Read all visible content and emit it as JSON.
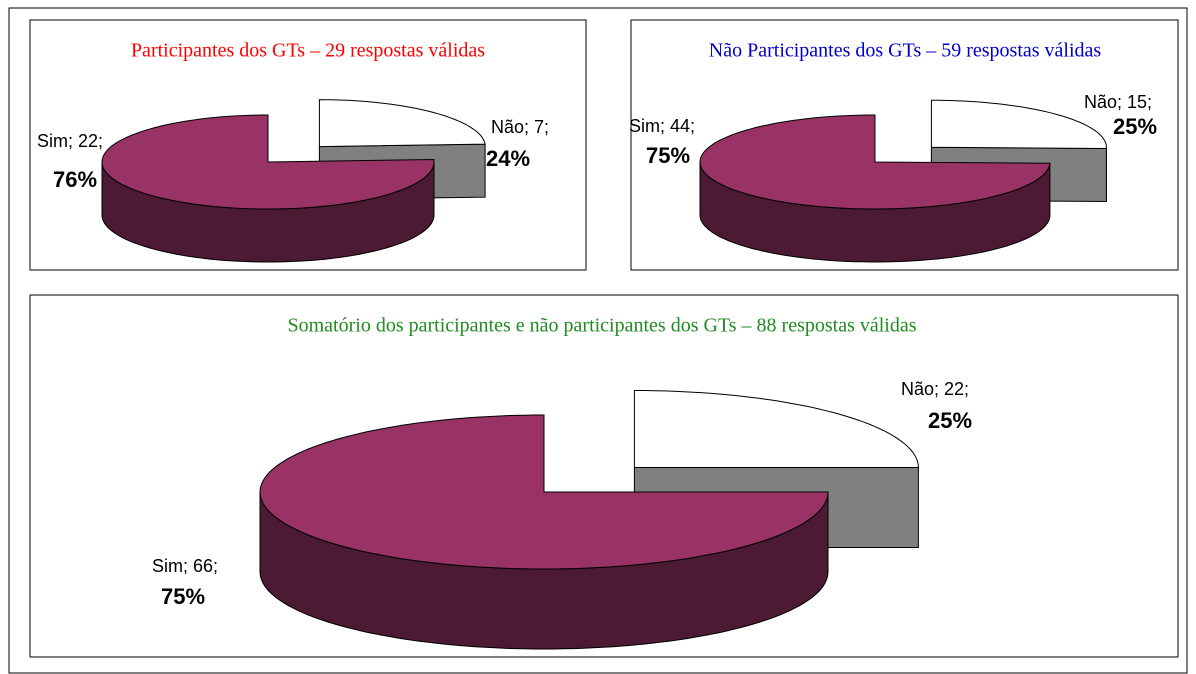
{
  "chart_data": [
    {
      "type": "pie",
      "title": "Participantes dos GTs – 29 respostas válidas",
      "title_color": "#ff0000",
      "categories": [
        "Sim",
        "Não"
      ],
      "values": [
        22,
        7
      ],
      "value_labels": [
        "Sim; 22;",
        "Não; 7;"
      ],
      "percentages": [
        76,
        24
      ],
      "percentage_labels": [
        "76%",
        "24%"
      ],
      "colors": [
        "#993366",
        "#ffffff"
      ],
      "side_colors": [
        "#4d1a33",
        "#808080"
      ]
    },
    {
      "type": "pie",
      "title": "Não Participantes dos GTs – 59 respostas válidas",
      "title_color": "#0000cc",
      "categories": [
        "Sim",
        "Não"
      ],
      "values": [
        44,
        15
      ],
      "value_labels": [
        "Sim; 44;",
        "Não; 15;"
      ],
      "percentages": [
        75,
        25
      ],
      "percentage_labels": [
        "75%",
        "25%"
      ],
      "colors": [
        "#993366",
        "#ffffff"
      ],
      "side_colors": [
        "#4d1a33",
        "#808080"
      ]
    },
    {
      "type": "pie",
      "title": "Somatório dos participantes e não participantes dos GTs – 88 respostas válidas",
      "title_color": "#228b22",
      "categories": [
        "Sim",
        "Não"
      ],
      "values": [
        66,
        22
      ],
      "value_labels": [
        "Sim; 66;",
        "Não; 22;"
      ],
      "percentages": [
        75,
        25
      ],
      "percentage_labels": [
        "75%",
        "25%"
      ],
      "colors": [
        "#993366",
        "#ffffff"
      ],
      "side_colors": [
        "#4d1a33",
        "#808080"
      ]
    }
  ]
}
